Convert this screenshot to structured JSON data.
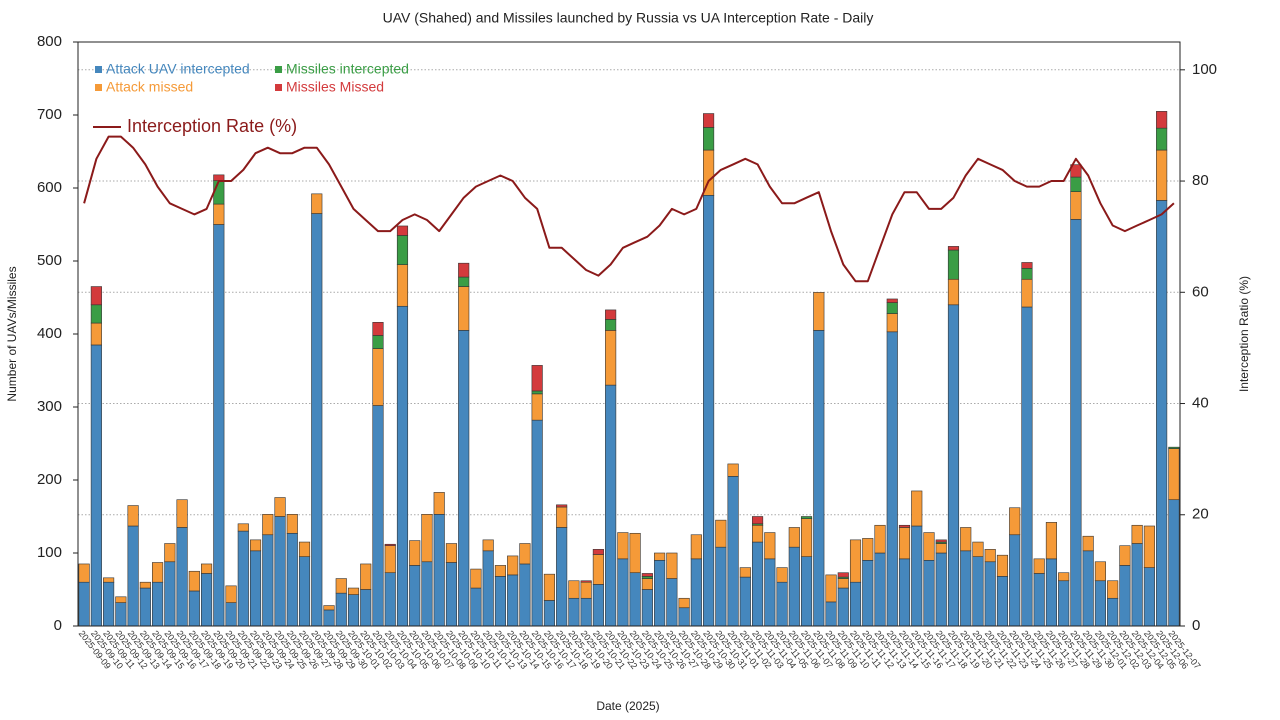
{
  "chart_data": {
    "type": "stacked_bar_line",
    "title": "UAV (Shahed) and Missiles launched by Russia vs UA Interception Rate - Daily",
    "xlabel": "Date (2025)",
    "ylabel": "Number of UAVs/Missiles",
    "y2label": "Interception Ratio (%)",
    "categories": [
      "2025-09-09",
      "2025-09-10",
      "2025-09-11",
      "2025-09-12",
      "2025-09-13",
      "2025-09-14",
      "2025-09-15",
      "2025-09-16",
      "2025-09-17",
      "2025-09-18",
      "2025-09-19",
      "2025-09-20",
      "2025-09-21",
      "2025-09-22",
      "2025-09-23",
      "2025-09-24",
      "2025-09-25",
      "2025-09-26",
      "2025-09-27",
      "2025-09-28",
      "2025-09-29",
      "2025-09-30",
      "2025-10-01",
      "2025-10-02",
      "2025-10-03",
      "2025-10-04",
      "2025-10-05",
      "2025-10-06",
      "2025-10-07",
      "2025-10-08",
      "2025-10-09",
      "2025-10-10",
      "2025-10-11",
      "2025-10-12",
      "2025-10-13",
      "2025-10-14",
      "2025-10-15",
      "2025-10-16",
      "2025-10-17",
      "2025-10-18",
      "2025-10-19",
      "2025-10-20",
      "2025-10-21",
      "2025-10-22",
      "2025-10-23",
      "2025-10-24",
      "2025-10-25",
      "2025-10-26",
      "2025-10-27",
      "2025-10-28",
      "2025-10-29",
      "2025-10-30",
      "2025-10-31",
      "2025-11-01",
      "2025-11-02",
      "2025-11-03",
      "2025-11-04",
      "2025-11-05",
      "2025-11-06",
      "2025-11-07",
      "2025-11-08",
      "2025-11-09",
      "2025-11-10",
      "2025-11-11",
      "2025-11-12",
      "2025-11-13",
      "2025-11-14",
      "2025-11-15",
      "2025-11-16",
      "2025-11-17",
      "2025-11-18",
      "2025-11-19",
      "2025-11-20",
      "2025-11-21",
      "2025-11-22",
      "2025-11-23",
      "2025-11-24",
      "2025-11-25",
      "2025-11-26",
      "2025-11-27",
      "2025-11-28",
      "2025-11-29",
      "2025-11-30",
      "2025-12-01",
      "2025-12-02",
      "2025-12-03",
      "2025-12-04",
      "2025-12-05",
      "2025-12-06",
      "2025-12-07"
    ],
    "series": [
      {
        "name": "Attack UAV intercepted",
        "color": "#4587bd",
        "values": [
          60,
          385,
          60,
          32,
          137,
          52,
          60,
          88,
          135,
          48,
          72,
          550,
          32,
          130,
          103,
          125,
          150,
          127,
          95,
          565,
          22,
          45,
          43,
          50,
          302,
          73,
          438,
          83,
          88,
          153,
          87,
          405,
          52,
          103,
          68,
          70,
          85,
          282,
          35,
          135,
          38,
          38,
          57,
          330,
          92,
          73,
          50,
          90,
          65,
          25,
          92,
          590,
          108,
          205,
          67,
          115,
          92,
          60,
          108,
          95,
          405,
          33,
          52,
          60,
          90,
          100,
          403,
          92,
          137,
          90,
          100,
          440,
          103,
          95,
          88,
          68,
          125,
          437,
          72,
          92,
          62,
          557,
          103,
          62,
          38,
          83,
          113,
          80,
          583,
          173
        ]
      },
      {
        "name": "Attack missed",
        "color": "#f59a38",
        "values": [
          25,
          30,
          6,
          8,
          28,
          8,
          27,
          25,
          38,
          27,
          13,
          28,
          23,
          10,
          15,
          28,
          26,
          26,
          20,
          27,
          6,
          20,
          9,
          35,
          78,
          37,
          57,
          34,
          65,
          30,
          26,
          60,
          26,
          15,
          15,
          26,
          28,
          36,
          36,
          28,
          24,
          22,
          41,
          75,
          36,
          54,
          15,
          10,
          35,
          13,
          33,
          62,
          37,
          17,
          13,
          23,
          36,
          20,
          27,
          52,
          52,
          37,
          13,
          58,
          30,
          38,
          25,
          43,
          48,
          38,
          13,
          35,
          32,
          20,
          17,
          29,
          37,
          38,
          20,
          50,
          11,
          38,
          20,
          26,
          24,
          27,
          25,
          57,
          69,
          70
        ]
      },
      {
        "name": "Missiles intercepted",
        "color": "#3a9d45",
        "values": [
          0,
          25,
          0,
          0,
          0,
          0,
          0,
          0,
          0,
          0,
          0,
          32,
          0,
          0,
          0,
          0,
          0,
          0,
          0,
          0,
          0,
          0,
          0,
          0,
          18,
          0,
          40,
          0,
          0,
          0,
          0,
          13,
          0,
          0,
          0,
          0,
          0,
          4,
          0,
          0,
          0,
          0,
          0,
          15,
          0,
          0,
          3,
          0,
          0,
          0,
          0,
          31,
          0,
          0,
          0,
          2,
          0,
          0,
          0,
          3,
          0,
          0,
          2,
          0,
          0,
          0,
          15,
          0,
          0,
          0,
          2,
          40,
          0,
          0,
          0,
          0,
          0,
          15,
          0,
          0,
          0,
          20,
          0,
          0,
          0,
          0,
          0,
          0,
          30,
          2
        ]
      },
      {
        "name": "Missiles Missed",
        "color": "#d33a3c",
        "values": [
          0,
          25,
          0,
          0,
          0,
          0,
          0,
          0,
          0,
          0,
          0,
          8,
          0,
          0,
          0,
          0,
          0,
          0,
          0,
          0,
          0,
          0,
          0,
          0,
          18,
          2,
          13,
          0,
          0,
          0,
          0,
          19,
          0,
          0,
          0,
          0,
          0,
          35,
          0,
          3,
          0,
          2,
          7,
          13,
          0,
          0,
          4,
          0,
          0,
          0,
          0,
          19,
          0,
          0,
          0,
          10,
          0,
          0,
          0,
          0,
          0,
          0,
          6,
          0,
          0,
          0,
          5,
          3,
          0,
          0,
          3,
          5,
          0,
          0,
          0,
          0,
          0,
          8,
          0,
          0,
          0,
          17,
          0,
          0,
          0,
          0,
          0,
          0,
          23,
          0
        ]
      },
      {
        "name": "Interception Rate (%)",
        "color": "#8b1a1a",
        "axis": "y2",
        "values": [
          76,
          84,
          88,
          88,
          86,
          83,
          79,
          76,
          75,
          74,
          75,
          80,
          80,
          82,
          85,
          86,
          85,
          85,
          86,
          86,
          83,
          79,
          75,
          73,
          71,
          71,
          73,
          74,
          73,
          71,
          74,
          77,
          79,
          80,
          81,
          80,
          77,
          75,
          68,
          68,
          66,
          64,
          63,
          65,
          68,
          69,
          70,
          72,
          75,
          74,
          75,
          80,
          82,
          83,
          84,
          83,
          79,
          76,
          76,
          77,
          78,
          71,
          65,
          62,
          62,
          68,
          74,
          78,
          78,
          75,
          75,
          77,
          81,
          84,
          83,
          82,
          80,
          79,
          79,
          80,
          80,
          84,
          81,
          76,
          72,
          71,
          72,
          73,
          74,
          76
        ]
      }
    ],
    "ylim": [
      0,
      800
    ],
    "yticks": [
      0,
      100,
      200,
      300,
      400,
      500,
      600,
      700,
      800
    ],
    "y2lim": [
      0,
      105
    ],
    "y2ticks": [
      0,
      20,
      40,
      60,
      80,
      100
    ],
    "grid": "y2",
    "legend": "upper left"
  }
}
